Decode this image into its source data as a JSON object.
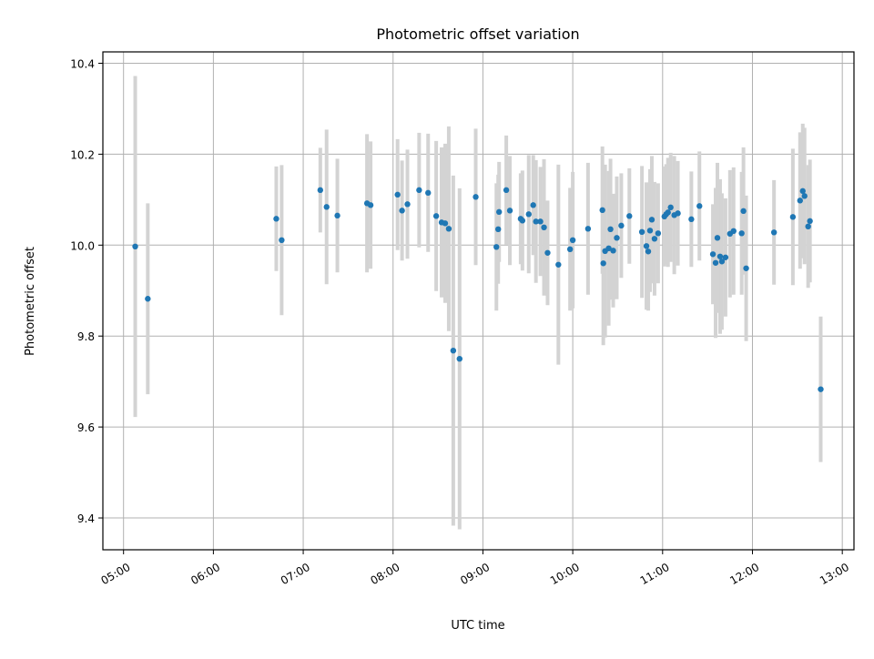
{
  "chart_data": {
    "type": "scatter",
    "title": "Photometric offset variation",
    "xlabel": "UTC time",
    "ylabel": "Photometric offset",
    "xlim_hours": [
      4.77,
      13.13
    ],
    "ylim": [
      9.33,
      10.425
    ],
    "grid": true,
    "x_ticks": [
      {
        "hour": 5,
        "label": "05:00"
      },
      {
        "hour": 6,
        "label": "06:00"
      },
      {
        "hour": 7,
        "label": "07:00"
      },
      {
        "hour": 8,
        "label": "08:00"
      },
      {
        "hour": 9,
        "label": "09:00"
      },
      {
        "hour": 10,
        "label": "10:00"
      },
      {
        "hour": 11,
        "label": "11:00"
      },
      {
        "hour": 12,
        "label": "12:00"
      },
      {
        "hour": 13,
        "label": "13:00"
      }
    ],
    "y_ticks": [
      {
        "value": 9.4,
        "label": "9.4"
      },
      {
        "value": 9.6,
        "label": "9.6"
      },
      {
        "value": 9.8,
        "label": "9.8"
      },
      {
        "value": 10.0,
        "label": "10.0"
      },
      {
        "value": 10.2,
        "label": "10.2"
      },
      {
        "value": 10.4,
        "label": "10.4"
      }
    ],
    "point_color": "#1f77b4",
    "errorbar_color": "#d3d3d3",
    "series": [
      {
        "name": "offset",
        "points": [
          [
            5.13,
            9.997,
            0.375
          ],
          [
            5.27,
            9.882,
            0.21
          ],
          [
            6.7,
            10.058,
            0.115
          ],
          [
            6.76,
            10.011,
            0.165
          ],
          [
            7.19,
            10.121,
            0.093
          ],
          [
            7.26,
            10.084,
            0.17
          ],
          [
            7.38,
            10.065,
            0.125
          ],
          [
            7.71,
            10.092,
            0.152
          ],
          [
            7.75,
            10.088,
            0.14
          ],
          [
            8.05,
            10.111,
            0.122
          ],
          [
            8.1,
            10.076,
            0.11
          ],
          [
            8.16,
            10.09,
            0.12
          ],
          [
            8.29,
            10.121,
            0.126
          ],
          [
            8.39,
            10.115,
            0.13
          ],
          [
            8.48,
            10.064,
            0.165
          ],
          [
            8.54,
            10.05,
            0.165
          ],
          [
            8.58,
            10.048,
            0.175
          ],
          [
            8.62,
            10.036,
            0.225
          ],
          [
            8.67,
            9.768,
            0.385
          ],
          [
            8.74,
            9.75,
            0.375
          ],
          [
            8.92,
            10.106,
            0.15
          ],
          [
            9.15,
            9.996,
            0.14
          ],
          [
            9.17,
            10.035,
            0.12
          ],
          [
            9.18,
            10.073,
            0.11
          ],
          [
            9.26,
            10.121,
            0.12
          ],
          [
            9.3,
            10.076,
            0.12
          ],
          [
            9.42,
            10.058,
            0.1
          ],
          [
            9.44,
            10.054,
            0.11
          ],
          [
            9.51,
            10.068,
            0.13
          ],
          [
            9.56,
            10.088,
            0.11
          ],
          [
            9.59,
            10.052,
            0.135
          ],
          [
            9.64,
            10.052,
            0.12
          ],
          [
            9.68,
            10.039,
            0.15
          ],
          [
            9.72,
            9.983,
            0.115
          ],
          [
            9.84,
            9.957,
            0.22
          ],
          [
            9.97,
            9.991,
            0.135
          ],
          [
            10.0,
            10.011,
            0.15
          ],
          [
            10.17,
            10.036,
            0.145
          ],
          [
            10.33,
            10.077,
            0.14
          ],
          [
            10.34,
            9.96,
            0.18
          ],
          [
            10.36,
            9.987,
            0.19
          ],
          [
            10.4,
            9.993,
            0.17
          ],
          [
            10.42,
            10.035,
            0.155
          ],
          [
            10.45,
            9.988,
            0.125
          ],
          [
            10.49,
            10.016,
            0.135
          ],
          [
            10.54,
            10.043,
            0.115
          ],
          [
            10.63,
            10.064,
            0.105
          ],
          [
            10.77,
            10.029,
            0.145
          ],
          [
            10.82,
            9.998,
            0.14
          ],
          [
            10.84,
            9.986,
            0.13
          ],
          [
            10.86,
            10.032,
            0.135
          ],
          [
            10.88,
            10.056,
            0.14
          ],
          [
            10.91,
            10.014,
            0.125
          ],
          [
            10.95,
            10.026,
            0.11
          ],
          [
            11.02,
            10.063,
            0.11
          ],
          [
            11.04,
            10.068,
            0.11
          ],
          [
            11.06,
            10.072,
            0.12
          ],
          [
            11.09,
            10.083,
            0.12
          ],
          [
            11.13,
            10.066,
            0.13
          ],
          [
            11.17,
            10.07,
            0.115
          ],
          [
            11.32,
            10.057,
            0.105
          ],
          [
            11.41,
            10.086,
            0.12
          ],
          [
            11.56,
            9.98,
            0.11
          ],
          [
            11.59,
            9.961,
            0.165
          ],
          [
            11.61,
            10.016,
            0.165
          ],
          [
            11.64,
            9.975,
            0.17
          ],
          [
            11.66,
            9.964,
            0.15
          ],
          [
            11.7,
            9.973,
            0.13
          ],
          [
            11.75,
            10.025,
            0.14
          ],
          [
            11.79,
            10.031,
            0.14
          ],
          [
            11.88,
            10.026,
            0.135
          ],
          [
            11.9,
            10.075,
            0.14
          ],
          [
            11.93,
            9.949,
            0.16
          ],
          [
            12.24,
            10.028,
            0.115
          ],
          [
            12.45,
            10.062,
            0.15
          ],
          [
            12.53,
            10.098,
            0.15
          ],
          [
            12.56,
            10.119,
            0.148
          ],
          [
            12.58,
            10.108,
            0.15
          ],
          [
            12.62,
            10.041,
            0.135
          ],
          [
            12.64,
            10.053,
            0.135
          ],
          [
            12.76,
            9.683,
            0.16
          ]
        ]
      }
    ]
  }
}
